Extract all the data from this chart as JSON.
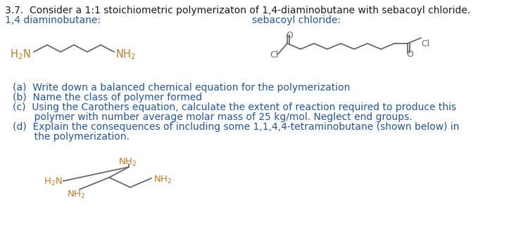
{
  "bg_color": "#ffffff",
  "black": "#1a1a1a",
  "blue": "#2155a0",
  "orange": "#c87820",
  "gray": "#686868",
  "title1": "3.7.  Consider a 1:1 stoichiometric polymerizaton of 1,4-diaminobutane with sebacoyl chloride.",
  "label_left": "1,4 diaminobutane:",
  "label_right": "sebacoyl chloride:",
  "q_a": "(a)  Write down a balanced chemical equation for the polymerization",
  "q_b": "(b)  Name the class of polymer formed",
  "q_c1": "(c)  Using the Carothers equation, calculate the extent of reaction required to produce this",
  "q_c2": "       polymer with number average molar mass of 25 kg/mol. Neglect end groups.",
  "q_d1": "(d)  Explain the consequences of including some 1,1,4,4-tetraminobutane (shown below) in",
  "q_d2": "       the polymerization.",
  "fs_title": 10.0,
  "fs_label": 10.0,
  "fs_struct": 9.0,
  "fs_q": 10.0
}
